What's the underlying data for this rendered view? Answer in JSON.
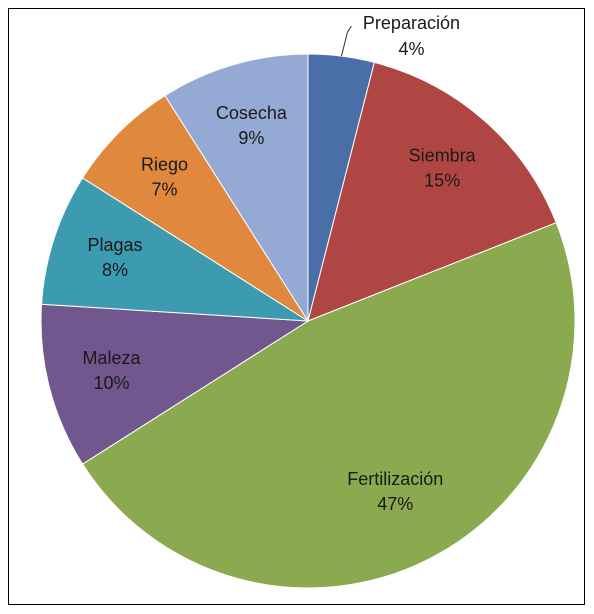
{
  "chart_data": {
    "type": "pie",
    "categories": [
      "Preparación",
      "Siembra",
      "Fertilización",
      "Maleza",
      "Plagas",
      "Riego",
      "Cosecha"
    ],
    "values": [
      4,
      15,
      47,
      10,
      8,
      7,
      9
    ],
    "value_labels": [
      "4%",
      "15%",
      "47%",
      "10%",
      "8%",
      "7%",
      "9%"
    ],
    "colors": [
      "#4a6fa8",
      "#b04644",
      "#8ba94e",
      "#72568e",
      "#3c9bb0",
      "#e0883e",
      "#94aad4"
    ]
  }
}
